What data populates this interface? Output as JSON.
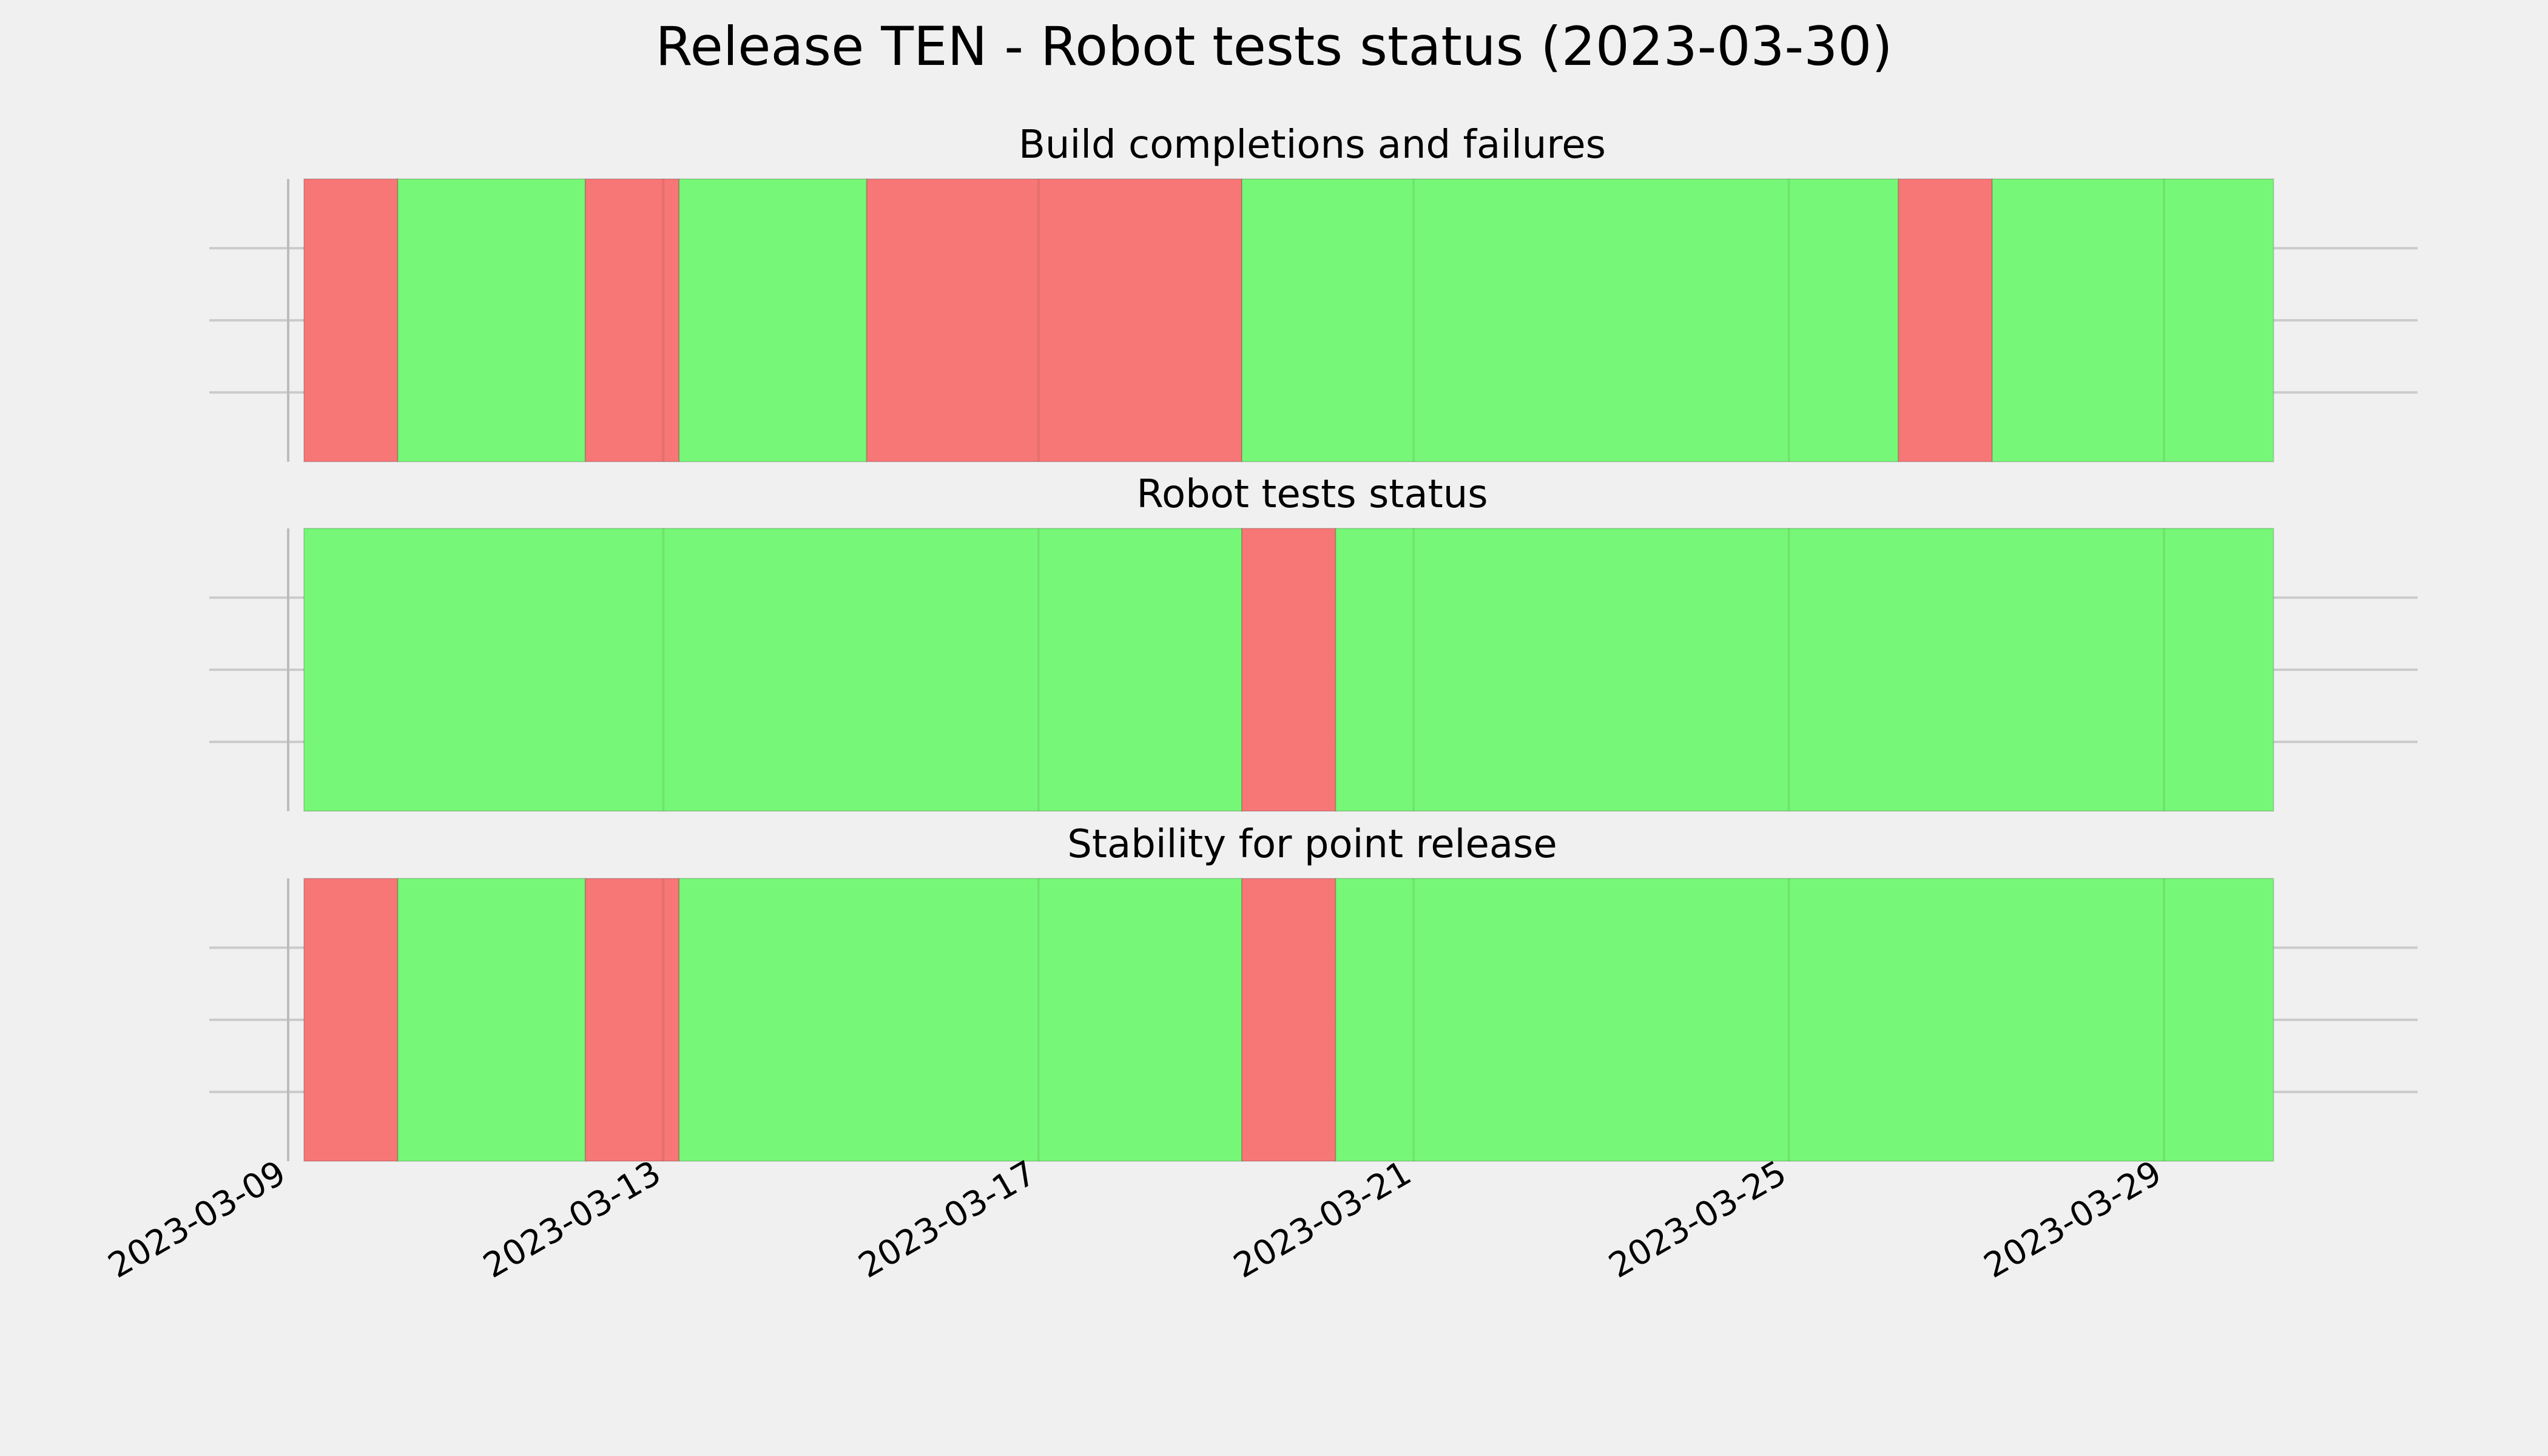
{
  "chart_data": {
    "type": "timeline",
    "title": "Release TEN - Robot tests status (2023-03-30)",
    "x_axis": {
      "type": "date",
      "ticks": [
        "2023-03-09",
        "2023-03-13",
        "2023-03-17",
        "2023-03-21",
        "2023-03-25",
        "2023-03-29"
      ],
      "range": [
        "2023-03-09",
        "2023-03-31"
      ]
    },
    "grid": true,
    "colors": {
      "pass": "#77f777",
      "fail": "#f77777",
      "background": "#f0f0f0",
      "grid": "#cbcbcb"
    },
    "panels": [
      {
        "title": "Build completions and failures",
        "segments": [
          {
            "start": "2023-03-09",
            "end": "2023-03-10",
            "status": "fail"
          },
          {
            "start": "2023-03-10",
            "end": "2023-03-12",
            "status": "pass"
          },
          {
            "start": "2023-03-12",
            "end": "2023-03-13",
            "status": "fail"
          },
          {
            "start": "2023-03-13",
            "end": "2023-03-15",
            "status": "pass"
          },
          {
            "start": "2023-03-15",
            "end": "2023-03-19",
            "status": "fail"
          },
          {
            "start": "2023-03-19",
            "end": "2023-03-26",
            "status": "pass"
          },
          {
            "start": "2023-03-26",
            "end": "2023-03-27",
            "status": "fail"
          },
          {
            "start": "2023-03-27",
            "end": "2023-03-30",
            "status": "pass"
          }
        ]
      },
      {
        "title": "Robot tests status",
        "segments": [
          {
            "start": "2023-03-09",
            "end": "2023-03-19",
            "status": "pass"
          },
          {
            "start": "2023-03-19",
            "end": "2023-03-20",
            "status": "fail"
          },
          {
            "start": "2023-03-20",
            "end": "2023-03-30",
            "status": "pass"
          }
        ]
      },
      {
        "title": "Stability for point release",
        "segments": [
          {
            "start": "2023-03-09",
            "end": "2023-03-10",
            "status": "fail"
          },
          {
            "start": "2023-03-10",
            "end": "2023-03-12",
            "status": "pass"
          },
          {
            "start": "2023-03-12",
            "end": "2023-03-13",
            "status": "fail"
          },
          {
            "start": "2023-03-13",
            "end": "2023-03-19",
            "status": "pass"
          },
          {
            "start": "2023-03-19",
            "end": "2023-03-20",
            "status": "fail"
          },
          {
            "start": "2023-03-20",
            "end": "2023-03-30",
            "status": "pass"
          }
        ]
      }
    ]
  }
}
